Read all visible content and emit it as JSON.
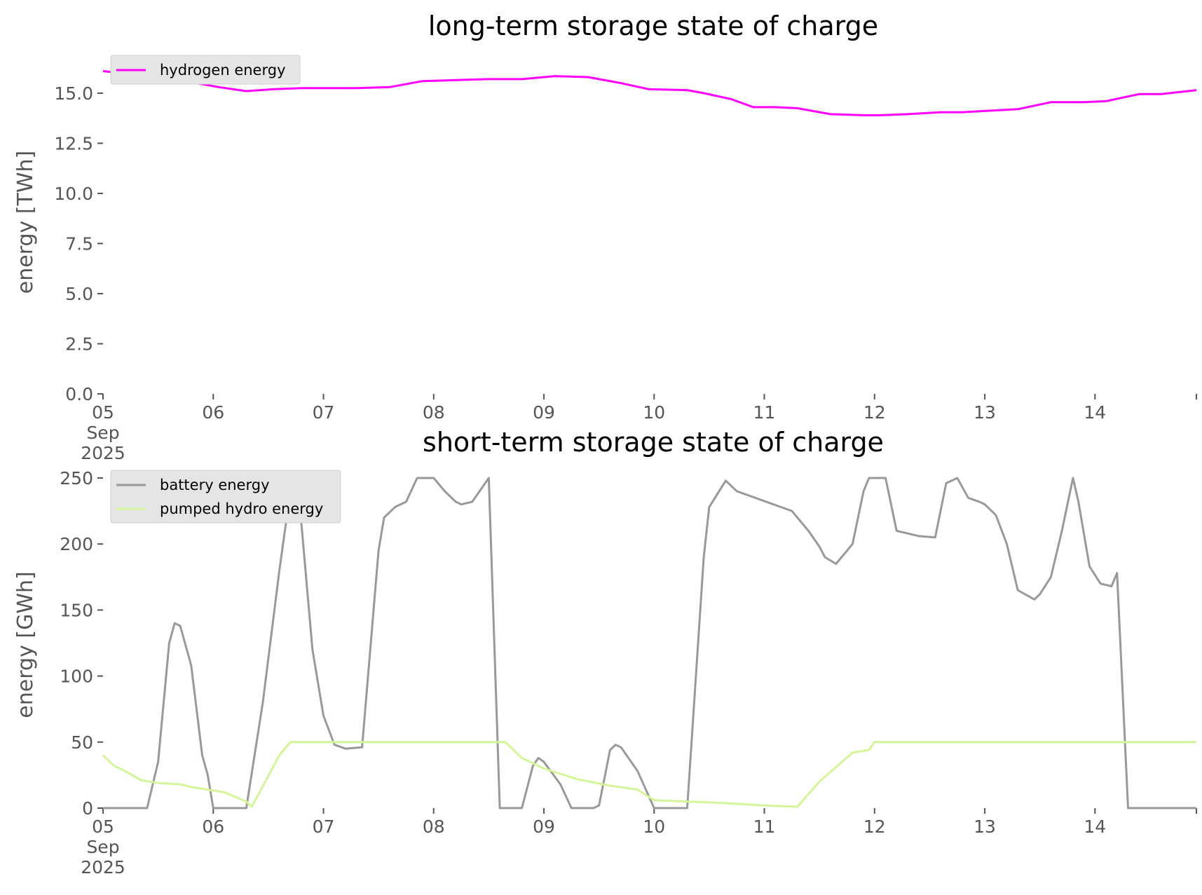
{
  "chart_data": [
    {
      "type": "line",
      "title": "long-term storage state of charge",
      "xlabel": "",
      "ylabel": "energy [TWh]",
      "ylim": [
        0,
        16.5
      ],
      "yticks": [
        "0.0",
        "2.5",
        "5.0",
        "7.5",
        "10.0",
        "12.5",
        "15.0"
      ],
      "xlim": [
        0,
        9.92
      ],
      "xticks": [
        "05",
        "06",
        "07",
        "08",
        "09",
        "10",
        "11",
        "12",
        "13",
        "14"
      ],
      "x_first_tick_sublabels": [
        "Sep",
        "2025"
      ],
      "x_unit_note": "days after 2025-09-05 00:00",
      "grid": false,
      "legend": "top-left",
      "series": [
        {
          "name": "hydrogen energy",
          "color": "#ff00ff",
          "x": [
            0,
            0.3,
            0.55,
            0.85,
            1.05,
            1.3,
            1.55,
            1.8,
            2.1,
            2.3,
            2.6,
            2.9,
            3.2,
            3.5,
            3.8,
            4.1,
            4.4,
            4.7,
            4.95,
            5.3,
            5.45,
            5.7,
            5.9,
            6.1,
            6.3,
            6.6,
            6.9,
            7.05,
            7.3,
            7.6,
            7.8,
            7.95,
            8.3,
            8.6,
            8.9,
            9.1,
            9.4,
            9.6,
            9.92
          ],
          "values": [
            16.1,
            15.9,
            15.7,
            15.5,
            15.3,
            15.1,
            15.2,
            15.25,
            15.25,
            15.25,
            15.3,
            15.6,
            15.65,
            15.7,
            15.7,
            15.85,
            15.8,
            15.5,
            15.2,
            15.15,
            15.0,
            14.7,
            14.3,
            14.3,
            14.25,
            13.95,
            13.9,
            13.9,
            13.95,
            14.05,
            14.05,
            14.1,
            14.2,
            14.55,
            14.55,
            14.6,
            14.95,
            14.95,
            15.15
          ]
        }
      ]
    },
    {
      "type": "line",
      "title": "short-term storage state of charge",
      "xlabel": "",
      "ylabel": "energy [GWh]",
      "ylim": [
        0,
        250
      ],
      "yticks": [
        "0",
        "50",
        "100",
        "150",
        "200",
        "250"
      ],
      "xlim": [
        0,
        9.92
      ],
      "xticks": [
        "05",
        "06",
        "07",
        "08",
        "09",
        "10",
        "11",
        "12",
        "13",
        "14"
      ],
      "x_first_tick_sublabels": [
        "Sep",
        "2025"
      ],
      "x_unit_note": "days after 2025-09-05 00:00",
      "grid": false,
      "legend": "top-left",
      "series": [
        {
          "name": "battery energy",
          "color": "#999999",
          "x": [
            0,
            0.4,
            0.5,
            0.6,
            0.65,
            0.7,
            0.8,
            0.9,
            0.95,
            1.0,
            1.05,
            1.3,
            1.45,
            1.6,
            1.7,
            1.75,
            1.8,
            1.9,
            2.0,
            2.1,
            2.2,
            2.35,
            2.5,
            2.55,
            2.65,
            2.75,
            2.85,
            3.0,
            3.1,
            3.2,
            3.25,
            3.35,
            3.5,
            3.6,
            3.8,
            3.9,
            3.95,
            4.0,
            4.15,
            4.25,
            4.35,
            4.45,
            4.5,
            4.6,
            4.65,
            4.7,
            4.85,
            5.0,
            5.05,
            5.3,
            5.45,
            5.5,
            5.65,
            5.75,
            6.25,
            6.4,
            6.5,
            6.55,
            6.65,
            6.8,
            6.9,
            6.95,
            7.1,
            7.2,
            7.3,
            7.4,
            7.55,
            7.65,
            7.75,
            7.85,
            7.95,
            8.0,
            8.1,
            8.2,
            8.3,
            8.45,
            8.5,
            8.6,
            8.7,
            8.8,
            8.85,
            8.95,
            9.05,
            9.15,
            9.2,
            9.3,
            9.4,
            9.5,
            9.6,
            9.7,
            9.75,
            9.85,
            9.92
          ],
          "values": [
            0,
            0,
            35,
            125,
            140,
            138,
            108,
            40,
            25,
            0,
            0,
            0,
            80,
            180,
            240,
            248,
            215,
            120,
            70,
            48,
            45,
            46,
            195,
            220,
            228,
            232,
            250,
            250,
            240,
            232,
            230,
            232,
            250,
            0,
            0,
            32,
            38,
            35,
            18,
            0,
            0,
            0,
            2,
            44,
            48,
            46,
            28,
            0,
            0,
            0,
            190,
            228,
            248,
            240,
            225,
            210,
            198,
            190,
            185,
            200,
            240,
            250,
            250,
            210,
            208,
            206,
            205,
            246,
            250,
            235,
            232,
            230,
            222,
            200,
            165,
            158,
            162,
            175,
            210,
            250,
            232,
            183,
            170,
            168,
            178,
            0,
            0,
            0,
            0,
            0,
            0,
            0,
            0
          ],
          "clip_to_domain": true
        },
        {
          "name": "pumped hydro energy",
          "color": "#d4f598",
          "x": [
            0,
            0.1,
            0.2,
            0.35,
            0.5,
            0.7,
            0.8,
            1.1,
            1.3,
            1.35,
            1.6,
            1.7,
            3.65,
            3.8,
            4.0,
            4.3,
            4.6,
            4.85,
            5.0,
            5.6,
            6.0,
            6.3,
            6.5,
            6.8,
            6.95,
            7.0,
            9.92
          ],
          "values": [
            40,
            32,
            28,
            21,
            19,
            18,
            16,
            12,
            5,
            1,
            40,
            50,
            50,
            38,
            30,
            22,
            17,
            14,
            6,
            4,
            2,
            1,
            20,
            42,
            44,
            50,
            50
          ]
        }
      ]
    }
  ]
}
